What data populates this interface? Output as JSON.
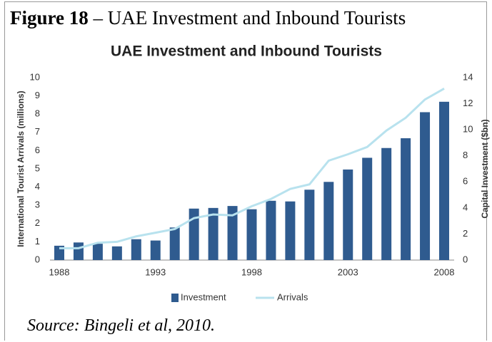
{
  "figure_label": "Figure 18",
  "caption": "– UAE Investment and Inbound Tourists",
  "source": "Source: Bingeli et al, 2010.",
  "chart_data": {
    "type": "bar_line",
    "title": "UAE Investment and Inbound Tourists",
    "y_label": "International Tourist Arrivals (millions)",
    "y2_label": "Capital Investment ($bn)",
    "categories": [
      "1988",
      null,
      null,
      null,
      null,
      "1993",
      null,
      null,
      null,
      null,
      "1998",
      null,
      null,
      null,
      null,
      "2003",
      null,
      null,
      null,
      null,
      "2008"
    ],
    "series": [
      {
        "name": "Investment",
        "type": "bar",
        "axis": "y2",
        "color": "#2f5b8f",
        "values": [
          1.1,
          1.35,
          1.25,
          1.05,
          1.6,
          1.5,
          2.5,
          3.95,
          4.0,
          4.15,
          3.9,
          4.55,
          4.5,
          5.4,
          6.0,
          6.95,
          7.85,
          8.6,
          9.35,
          11.35,
          12.15
        ]
      },
      {
        "name": "Arrivals",
        "type": "line",
        "axis": "y",
        "color": "#b8e2ee",
        "values": [
          0.65,
          0.65,
          0.95,
          1.0,
          1.3,
          1.5,
          1.7,
          2.3,
          2.5,
          2.45,
          2.95,
          3.35,
          3.9,
          4.15,
          5.45,
          5.8,
          6.2,
          7.1,
          7.8,
          8.8,
          9.4
        ]
      }
    ],
    "ylim": [
      0,
      10
    ],
    "yticks": [
      0,
      1,
      2,
      3,
      4,
      5,
      6,
      7,
      8,
      9,
      10
    ],
    "y2lim": [
      0,
      14
    ],
    "y2ticks": [
      0,
      2,
      4,
      6,
      8,
      10,
      12,
      14
    ],
    "legend": "bottom",
    "grid": false
  }
}
